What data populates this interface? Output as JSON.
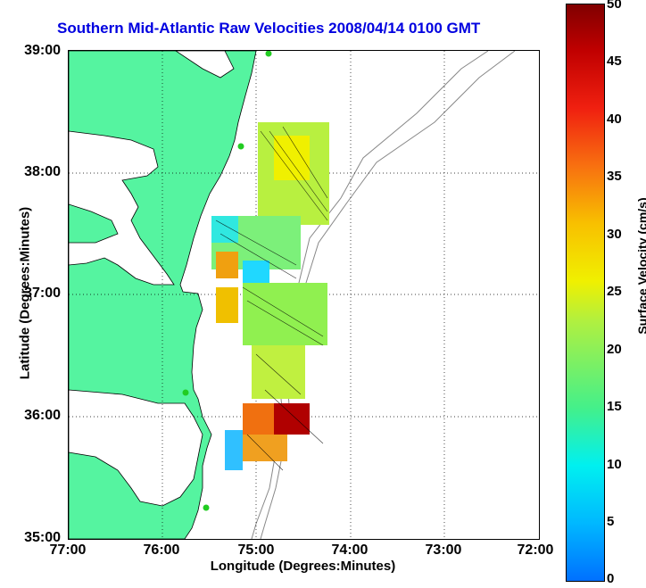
{
  "title": "Southern Mid-Atlantic Raw Velocities 2008/04/14 0100 GMT",
  "xlabel": "Longitude (Degrees:Minutes)",
  "ylabel": "Latitude (Degrees:Minutes)",
  "xticks": [
    "77:00",
    "76:00",
    "75:00",
    "74:00",
    "73:00",
    "72:00"
  ],
  "yticks": [
    "39:00",
    "38:00",
    "37:00",
    "36:00",
    "35:00"
  ],
  "colorbar": {
    "label": "Surface Velocity (cm/s)",
    "ticks": [
      "50",
      "45",
      "40",
      "35",
      "30",
      "25",
      "20",
      "15",
      "10",
      "5",
      "0"
    ],
    "range": [
      0,
      50
    ]
  },
  "colors": {
    "land": "#55f4a0",
    "coast": "#000000",
    "bathymetry": "#888888",
    "title": "#0000e0",
    "station": "#22cc22"
  }
}
